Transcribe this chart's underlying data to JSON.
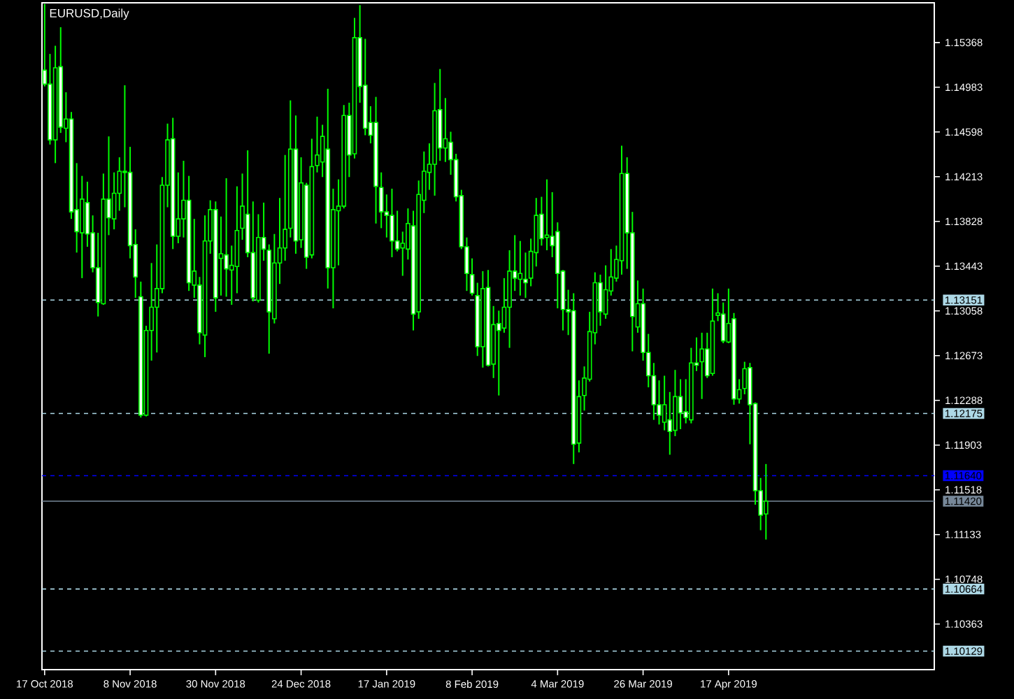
{
  "chart_data": {
    "type": "candlestick",
    "title": "EURUSD,Daily",
    "color": "#00ff00",
    "categories": [
      "17 Oct 2018",
      null,
      null,
      null,
      null,
      null,
      null,
      null,
      null,
      null,
      null,
      null,
      null,
      null,
      null,
      null,
      "8 Nov 2018",
      null,
      null,
      null,
      null,
      null,
      null,
      null,
      null,
      null,
      null,
      null,
      null,
      null,
      null,
      null,
      "30 Nov 2018",
      null,
      null,
      null,
      null,
      null,
      null,
      null,
      null,
      null,
      null,
      null,
      null,
      null,
      null,
      null,
      "24 Dec 2018",
      null,
      null,
      null,
      null,
      null,
      null,
      null,
      null,
      null,
      null,
      null,
      null,
      null,
      null,
      null,
      "17 Jan 2019",
      null,
      null,
      null,
      null,
      null,
      null,
      null,
      null,
      null,
      null,
      null,
      null,
      null,
      null,
      null,
      "8 Feb 2019",
      null,
      null,
      null,
      null,
      null,
      null,
      null,
      null,
      null,
      null,
      null,
      null,
      null,
      null,
      null,
      "4 Mar 2019",
      null,
      null,
      null,
      null,
      null,
      null,
      null,
      null,
      null,
      null,
      null,
      null,
      null,
      null,
      null,
      "26 Mar 2019",
      null,
      null,
      null,
      null,
      null,
      null,
      null,
      null,
      null,
      null,
      null,
      null,
      null,
      null,
      null,
      "17 Apr 2019",
      null,
      null,
      null,
      null,
      null,
      null,
      null,
      null,
      null,
      null,
      null,
      null,
      null,
      null,
      null,
      null,
      null,
      null,
      null,
      null,
      null,
      null,
      null,
      null,
      null,
      null,
      null,
      null,
      null,
      null,
      null,
      null,
      null,
      null,
      null,
      null,
      null,
      null
    ],
    "ohlc": [
      [
        1.1513,
        1.157,
        1.1499,
        1.1501
      ],
      [
        1.1501,
        1.1527,
        1.1449,
        1.1453
      ],
      [
        1.1453,
        1.1534,
        1.1433,
        1.1515
      ],
      [
        1.1516,
        1.155,
        1.1459,
        1.1464
      ],
      [
        1.1463,
        1.1494,
        1.1451,
        1.1471
      ],
      [
        1.1471,
        1.1477,
        1.1385,
        1.1391
      ],
      [
        1.1393,
        1.1433,
        1.1356,
        1.1374
      ],
      [
        1.1373,
        1.1422,
        1.1334,
        1.1402
      ],
      [
        1.1399,
        1.1417,
        1.1361,
        1.1372
      ],
      [
        1.1373,
        1.1388,
        1.1339,
        1.1343
      ],
      [
        1.1343,
        1.1373,
        1.1301,
        1.1313
      ],
      [
        1.1312,
        1.1424,
        1.1311,
        1.1402
      ],
      [
        1.1402,
        1.1456,
        1.1371,
        1.1386
      ],
      [
        1.1385,
        1.1425,
        1.1376,
        1.1407
      ],
      [
        1.1407,
        1.1438,
        1.1392,
        1.1426
      ],
      [
        1.1426,
        1.15,
        1.1395,
        1.1425
      ],
      [
        1.1425,
        1.1447,
        1.1351,
        1.1362
      ],
      [
        1.1363,
        1.1376,
        1.1317,
        1.1335
      ],
      [
        1.1318,
        1.1331,
        1.1214,
        1.1216
      ],
      [
        1.1216,
        1.1293,
        1.1215,
        1.1289
      ],
      [
        1.1289,
        1.1347,
        1.1263,
        1.1309
      ],
      [
        1.1309,
        1.1363,
        1.127,
        1.1325
      ],
      [
        1.1325,
        1.1421,
        1.1321,
        1.1414
      ],
      [
        1.1414,
        1.1467,
        1.1395,
        1.1453
      ],
      [
        1.1454,
        1.1472,
        1.1359,
        1.137
      ],
      [
        1.137,
        1.1425,
        1.1364,
        1.1385
      ],
      [
        1.1385,
        1.1435,
        1.1369,
        1.1401
      ],
      [
        1.1401,
        1.1422,
        1.1323,
        1.133
      ],
      [
        1.1328,
        1.1385,
        1.1317,
        1.134
      ],
      [
        1.1328,
        1.1335,
        1.1277,
        1.1287
      ],
      [
        1.1285,
        1.1388,
        1.1266,
        1.1366
      ],
      [
        1.1366,
        1.1401,
        1.1355,
        1.1393
      ],
      [
        1.1393,
        1.14,
        1.1305,
        1.1317
      ],
      [
        1.1351,
        1.1387,
        1.1319,
        1.1355
      ],
      [
        1.1354,
        1.142,
        1.1318,
        1.1342
      ],
      [
        1.1341,
        1.1362,
        1.1311,
        1.1345
      ],
      [
        1.1344,
        1.1413,
        1.1321,
        1.1375
      ],
      [
        1.1377,
        1.1424,
        1.1367,
        1.1396
      ],
      [
        1.1389,
        1.1444,
        1.1352,
        1.1356
      ],
      [
        1.1356,
        1.14,
        1.1314,
        1.1317
      ],
      [
        1.1315,
        1.1389,
        1.1313,
        1.1369
      ],
      [
        1.1369,
        1.1399,
        1.1349,
        1.1359
      ],
      [
        1.1358,
        1.1363,
        1.1269,
        1.1305
      ],
      [
        1.1299,
        1.1372,
        1.1295,
        1.1347
      ],
      [
        1.1347,
        1.1403,
        1.1329,
        1.136
      ],
      [
        1.136,
        1.144,
        1.1349,
        1.1376
      ],
      [
        1.1377,
        1.1487,
        1.1369,
        1.1445
      ],
      [
        1.1445,
        1.1474,
        1.1355,
        1.1366
      ],
      [
        1.1367,
        1.1438,
        1.136,
        1.1416
      ],
      [
        1.1414,
        1.1416,
        1.1342,
        1.1352
      ],
      [
        1.1354,
        1.1454,
        1.1351,
        1.143
      ],
      [
        1.1431,
        1.1473,
        1.1425,
        1.144
      ],
      [
        1.1434,
        1.1466,
        1.1421,
        1.1456
      ],
      [
        1.1445,
        1.1497,
        1.1325,
        1.1343
      ],
      [
        1.1343,
        1.1411,
        1.1308,
        1.1393
      ],
      [
        1.1392,
        1.1419,
        1.1345,
        1.1396
      ],
      [
        1.1396,
        1.1483,
        1.1394,
        1.1474
      ],
      [
        1.1474,
        1.1485,
        1.1421,
        1.144
      ],
      [
        1.1441,
        1.1558,
        1.1437,
        1.1541
      ],
      [
        1.1541,
        1.1569,
        1.1485,
        1.1499
      ],
      [
        1.15,
        1.154,
        1.1457,
        1.1463
      ],
      [
        1.1468,
        1.1482,
        1.145,
        1.1457
      ],
      [
        1.1468,
        1.149,
        1.1381,
        1.1413
      ],
      [
        1.1412,
        1.1425,
        1.1377,
        1.1391
      ],
      [
        1.1391,
        1.1406,
        1.1369,
        1.1388
      ],
      [
        1.1388,
        1.1411,
        1.1352,
        1.1366
      ],
      [
        1.1366,
        1.1392,
        1.1357,
        1.1359
      ],
      [
        1.136,
        1.1374,
        1.1336,
        1.1364
      ],
      [
        1.1359,
        1.1394,
        1.135,
        1.1381
      ],
      [
        1.1379,
        1.1392,
        1.1289,
        1.1303
      ],
      [
        1.1305,
        1.1418,
        1.1299,
        1.1406
      ],
      [
        1.1401,
        1.1443,
        1.139,
        1.1426
      ],
      [
        1.1425,
        1.145,
        1.141,
        1.1432
      ],
      [
        1.1432,
        1.1502,
        1.1405,
        1.1478
      ],
      [
        1.1479,
        1.1514,
        1.1435,
        1.1446
      ],
      [
        1.1446,
        1.1489,
        1.1434,
        1.1454
      ],
      [
        1.1451,
        1.146,
        1.1423,
        1.1436
      ],
      [
        1.1436,
        1.1441,
        1.14,
        1.1404
      ],
      [
        1.1405,
        1.141,
        1.1359,
        1.1361
      ],
      [
        1.1361,
        1.1369,
        1.1323,
        1.1338
      ],
      [
        1.1337,
        1.1351,
        1.1319,
        1.1321
      ],
      [
        1.1319,
        1.133,
        1.1267,
        1.1275
      ],
      [
        1.1275,
        1.134,
        1.1257,
        1.1325
      ],
      [
        1.1326,
        1.1341,
        1.1258,
        1.1259
      ],
      [
        1.126,
        1.131,
        1.1248,
        1.1294
      ],
      [
        1.1295,
        1.1306,
        1.1233,
        1.1289
      ],
      [
        1.1291,
        1.1334,
        1.1287,
        1.1309
      ],
      [
        1.1309,
        1.1358,
        1.1274,
        1.134
      ],
      [
        1.134,
        1.1371,
        1.1323,
        1.1334
      ],
      [
        1.1333,
        1.1366,
        1.1319,
        1.1338
      ],
      [
        1.1333,
        1.1356,
        1.1317,
        1.133
      ],
      [
        1.1334,
        1.1368,
        1.1327,
        1.1357
      ],
      [
        1.1356,
        1.1403,
        1.1344,
        1.1388
      ],
      [
        1.1389,
        1.1404,
        1.1362,
        1.1368
      ],
      [
        1.1369,
        1.1419,
        1.1358,
        1.1371
      ],
      [
        1.137,
        1.1408,
        1.1352,
        1.1362
      ],
      [
        1.1374,
        1.1382,
        1.1308,
        1.1338
      ],
      [
        1.134,
        1.1341,
        1.1289,
        1.1307
      ],
      [
        1.1307,
        1.1324,
        1.1285,
        1.1305
      ],
      [
        1.1306,
        1.1321,
        1.1174,
        1.1191
      ],
      [
        1.1192,
        1.1246,
        1.1184,
        1.1232
      ],
      [
        1.1233,
        1.1258,
        1.122,
        1.1248
      ],
      [
        1.1247,
        1.1305,
        1.1245,
        1.1288
      ],
      [
        1.1287,
        1.1339,
        1.1277,
        1.133
      ],
      [
        1.133,
        1.1337,
        1.1293,
        1.1305
      ],
      [
        1.1303,
        1.1345,
        1.1299,
        1.1324
      ],
      [
        1.1323,
        1.1359,
        1.1319,
        1.1335
      ],
      [
        1.1334,
        1.1362,
        1.1331,
        1.135
      ],
      [
        1.1349,
        1.1448,
        1.1337,
        1.1424
      ],
      [
        1.1424,
        1.1438,
        1.1342,
        1.1373
      ],
      [
        1.1373,
        1.1391,
        1.1271,
        1.1301
      ],
      [
        1.1292,
        1.1332,
        1.1287,
        1.1312
      ],
      [
        1.1312,
        1.1325,
        1.1263,
        1.127
      ],
      [
        1.127,
        1.1286,
        1.124,
        1.125
      ],
      [
        1.125,
        1.1261,
        1.1212,
        1.1225
      ],
      [
        1.1225,
        1.1246,
        1.1208,
        1.1216
      ],
      [
        1.121,
        1.125,
        1.1203,
        1.1225
      ],
      [
        1.1212,
        1.1236,
        1.1182,
        1.1202
      ],
      [
        1.1203,
        1.1255,
        1.1198,
        1.1232
      ],
      [
        1.1232,
        1.1247,
        1.1204,
        1.1218
      ],
      [
        1.1219,
        1.1247,
        1.1209,
        1.1214
      ],
      [
        1.1212,
        1.1274,
        1.1209,
        1.1261
      ],
      [
        1.1261,
        1.1283,
        1.1254,
        1.1259
      ],
      [
        1.1262,
        1.1287,
        1.123,
        1.1273
      ],
      [
        1.1273,
        1.1287,
        1.1248,
        1.125
      ],
      [
        1.1252,
        1.1325,
        1.125,
        1.1297
      ],
      [
        1.1302,
        1.1321,
        1.1297,
        1.1304
      ],
      [
        1.1303,
        1.1313,
        1.1278,
        1.128
      ],
      [
        1.1279,
        1.1325,
        1.1278,
        1.1295
      ],
      [
        1.1299,
        1.1304,
        1.1225,
        1.123
      ],
      [
        1.123,
        1.1247,
        1.1226,
        1.1238
      ],
      [
        1.1239,
        1.1262,
        1.1234,
        1.1256
      ],
      [
        1.1257,
        1.1261,
        1.1191,
        1.1225
      ],
      [
        1.1226,
        1.1227,
        1.1139,
        1.1151
      ],
      [
        1.1151,
        1.1162,
        1.1117,
        1.113
      ],
      [
        1.1131,
        1.1174,
        1.1109,
        1.1142
      ],
      null,
      null,
      null,
      null,
      null,
      null,
      null,
      null,
      null,
      null,
      null,
      null,
      null,
      null,
      null,
      null,
      null,
      null,
      null,
      null,
      null,
      null,
      null,
      null,
      null,
      null,
      null,
      null,
      null,
      null,
      null
    ],
    "ylim": [
      1.0997,
      1.1571
    ],
    "yticks": [
      1.15368,
      1.14983,
      1.14598,
      1.14213,
      1.13828,
      1.13443,
      1.13058,
      1.12673,
      1.12288,
      1.11903,
      1.11518,
      1.11133,
      1.10748,
      1.10363
    ],
    "ref_lines": [
      {
        "axis": "y",
        "value": 1.13151,
        "label": "1.13151",
        "color": "#add8e6",
        "line_style": "dashed"
      },
      {
        "axis": "y",
        "value": 1.12175,
        "label": "1.12175",
        "color": "#add8e6",
        "line_style": "dashed"
      },
      {
        "axis": "y",
        "value": 1.1164,
        "label": "1.11640",
        "color": "#0000ff",
        "line_style": "dashed"
      },
      {
        "axis": "y",
        "value": 1.1142,
        "label": "1.11420",
        "color": "#778899",
        "line_style": "solid"
      },
      {
        "axis": "y",
        "value": 1.10664,
        "label": "1.10664",
        "color": "#add8e6",
        "line_style": "dashed"
      },
      {
        "axis": "y",
        "value": 1.10129,
        "label": "1.10129",
        "color": "#add8e6",
        "line_style": "dashed"
      }
    ]
  }
}
